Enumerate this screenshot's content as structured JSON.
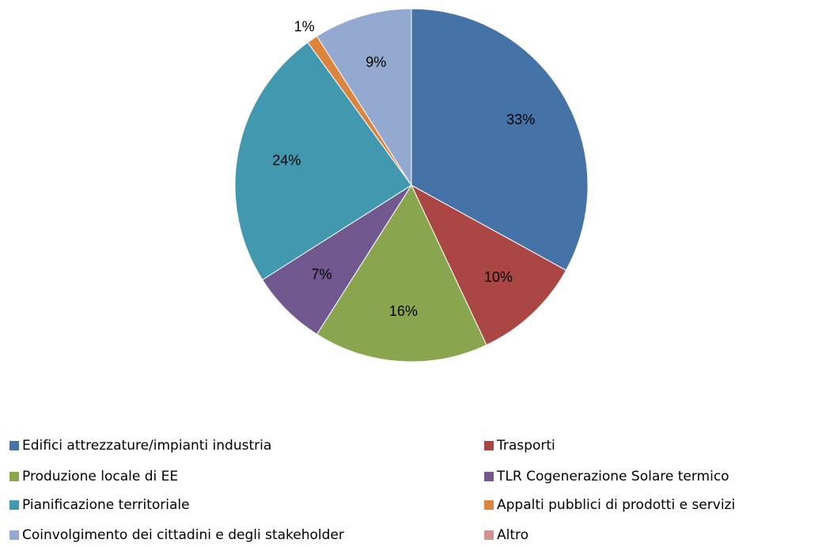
{
  "chart_data": {
    "type": "pie",
    "categories": [
      "Edifici attrezzature/impianti  industria",
      "Trasporti",
      "Produzione locale di EE",
      "TLR Cogenerazione Solare termico",
      "Pianificazione territoriale",
      "Appalti pubblici di prodotti e servizi",
      "Coinvolgimento dei cittadini e degli stakeholder",
      "Altro"
    ],
    "values": [
      33,
      10,
      16,
      7,
      24,
      1,
      9,
      0
    ],
    "value_labels": [
      "33%",
      "10%",
      "16%",
      "7%",
      "24%",
      "1%",
      "9%",
      null
    ],
    "colors": [
      "#4572a7",
      "#aa4643",
      "#89a54e",
      "#71588f",
      "#4198af",
      "#db843d",
      "#93a9cf",
      "#d19392"
    ],
    "legend": "bottom"
  }
}
